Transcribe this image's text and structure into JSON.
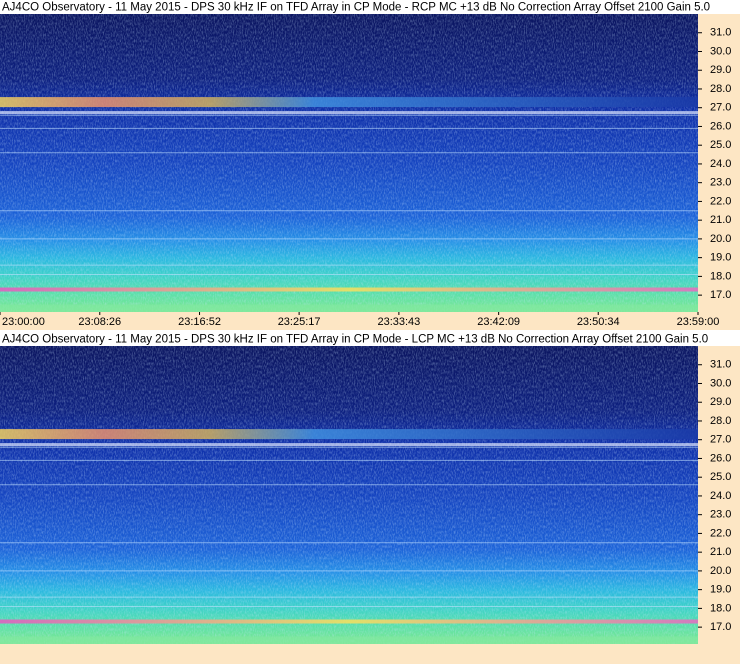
{
  "chart_data": [
    {
      "type": "spectrogram",
      "title": "AJ4CO Observatory - 11 May 2015 - DPS 30 kHz IF on TFD Array in CP Mode - RCP  MC +13 dB  No Correction Array  Offset 2100   Gain 5.0",
      "ylim": [
        16.1,
        32.0
      ],
      "yticks": [
        {
          "value": 17,
          "label": "17.0"
        },
        {
          "value": 18,
          "label": "18.0"
        },
        {
          "value": 19,
          "label": "19.0"
        },
        {
          "value": 20,
          "label": "20.0"
        },
        {
          "value": 21,
          "label": "21.0"
        },
        {
          "value": 22,
          "label": "22.0"
        },
        {
          "value": 23,
          "label": "23.0"
        },
        {
          "value": 24,
          "label": "24.0"
        },
        {
          "value": 25,
          "label": "25.0"
        },
        {
          "value": 26,
          "label": "26.0"
        },
        {
          "value": 27,
          "label": "27.0"
        },
        {
          "value": 28,
          "label": "28.0"
        },
        {
          "value": 29,
          "label": "29.0"
        },
        {
          "value": 30,
          "label": "30.0"
        },
        {
          "value": 31,
          "label": "31.0"
        }
      ],
      "xlim": [
        "23:00:00",
        "23:59:00"
      ],
      "xticks": [
        "23:00:00",
        "23:08:26",
        "23:16:52",
        "23:25:17",
        "23:33:43",
        "23:42:09",
        "23:50:34",
        "23:59:00"
      ]
    },
    {
      "type": "spectrogram",
      "title": "AJ4CO Observatory - 11 May 2015 - DPS 30 kHz IF on TFD Array in CP Mode - LCP  MC +13 dB  No Correction Array  Offset 2100   Gain 5.0",
      "ylim": [
        16.1,
        32.0
      ],
      "yticks": [
        {
          "value": 17,
          "label": "17.0"
        },
        {
          "value": 18,
          "label": "18.0"
        },
        {
          "value": 19,
          "label": "19.0"
        },
        {
          "value": 20,
          "label": "20.0"
        },
        {
          "value": 21,
          "label": "21.0"
        },
        {
          "value": 22,
          "label": "22.0"
        },
        {
          "value": 23,
          "label": "23.0"
        },
        {
          "value": 24,
          "label": "24.0"
        },
        {
          "value": 25,
          "label": "25.0"
        },
        {
          "value": 26,
          "label": "26.0"
        },
        {
          "value": 27,
          "label": "27.0"
        },
        {
          "value": 28,
          "label": "28.0"
        },
        {
          "value": 29,
          "label": "29.0"
        },
        {
          "value": 30,
          "label": "30.0"
        },
        {
          "value": 31,
          "label": "31.0"
        }
      ]
    }
  ]
}
